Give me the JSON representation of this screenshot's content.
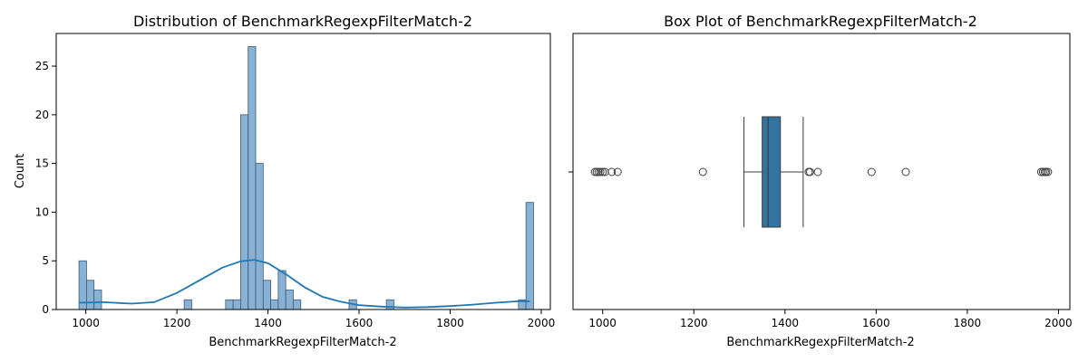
{
  "colors": {
    "hist_fill": "#89b1d3",
    "hist_edge": "#3b5a78",
    "kde_line": "#1f77b4",
    "box_fill": "#3274a1",
    "box_edge": "#3d3d3d"
  },
  "chart_data": [
    {
      "type": "histogram",
      "title": "Distribution of BenchmarkRegexpFilterMatch-2",
      "xlabel": "BenchmarkRegexpFilterMatch-2",
      "ylabel": "Count",
      "xlim": [
        935,
        2020
      ],
      "ylim": [
        0,
        28.35
      ],
      "xticks": [
        1000,
        1200,
        1400,
        1600,
        1800,
        2000
      ],
      "yticks": [
        0,
        5,
        10,
        15,
        20,
        25
      ],
      "bin_width": 16.5,
      "bins": [
        {
          "x0": 985,
          "x1": 1001.5,
          "count": 5
        },
        {
          "x0": 1001.5,
          "x1": 1018,
          "count": 3
        },
        {
          "x0": 1018,
          "x1": 1034.5,
          "count": 2
        },
        {
          "x0": 1216,
          "x1": 1232.5,
          "count": 1
        },
        {
          "x0": 1307,
          "x1": 1323.5,
          "count": 1
        },
        {
          "x0": 1323.5,
          "x1": 1340,
          "count": 1
        },
        {
          "x0": 1340,
          "x1": 1356.5,
          "count": 20
        },
        {
          "x0": 1356.5,
          "x1": 1373,
          "count": 27
        },
        {
          "x0": 1373,
          "x1": 1389.5,
          "count": 15
        },
        {
          "x0": 1389.5,
          "x1": 1406,
          "count": 3
        },
        {
          "x0": 1406,
          "x1": 1422.5,
          "count": 1
        },
        {
          "x0": 1422.5,
          "x1": 1439,
          "count": 4
        },
        {
          "x0": 1439,
          "x1": 1455.5,
          "count": 2
        },
        {
          "x0": 1455.5,
          "x1": 1472,
          "count": 1
        },
        {
          "x0": 1578,
          "x1": 1594.5,
          "count": 1
        },
        {
          "x0": 1660,
          "x1": 1676.5,
          "count": 1
        },
        {
          "x0": 1950,
          "x1": 1966.5,
          "count": 1
        },
        {
          "x0": 1966.5,
          "x1": 1983,
          "count": 11
        }
      ],
      "kde": {
        "x": [
          985,
          1040,
          1100,
          1150,
          1200,
          1250,
          1300,
          1340,
          1370,
          1400,
          1440,
          1480,
          1520,
          1560,
          1600,
          1650,
          1700,
          1750,
          1800,
          1850,
          1900,
          1950,
          1975
        ],
        "y": [
          0.7,
          0.75,
          0.6,
          0.75,
          1.7,
          3.0,
          4.3,
          4.95,
          5.1,
          4.75,
          3.6,
          2.3,
          1.3,
          0.8,
          0.45,
          0.3,
          0.2,
          0.25,
          0.35,
          0.5,
          0.7,
          0.85,
          0.85
        ]
      }
    },
    {
      "type": "box",
      "title": "Box Plot of BenchmarkRegexpFilterMatch-2",
      "xlabel": "BenchmarkRegexpFilterMatch-2",
      "xlim": [
        935,
        2025
      ],
      "xticks": [
        1000,
        1200,
        1400,
        1600,
        1800,
        2000
      ],
      "whisker_low": 1310,
      "q1": 1350,
      "median": 1363,
      "q3": 1390,
      "whisker_high": 1440,
      "outliers": [
        983,
        987,
        991,
        995,
        1000,
        1005,
        1020,
        1033,
        1220,
        1452,
        1455,
        1472,
        1590,
        1665,
        1962,
        1966,
        1970,
        1973,
        1977
      ]
    }
  ]
}
